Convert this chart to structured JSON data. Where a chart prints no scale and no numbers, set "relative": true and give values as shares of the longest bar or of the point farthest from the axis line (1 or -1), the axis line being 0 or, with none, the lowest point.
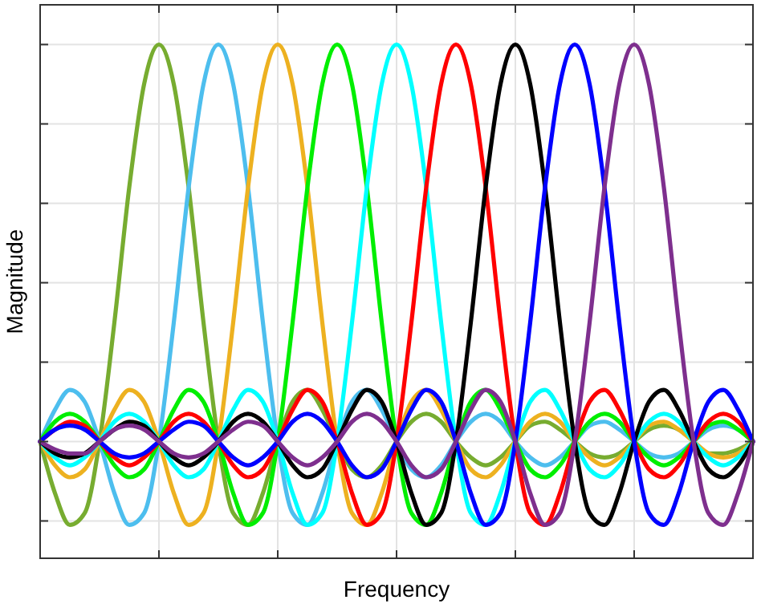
{
  "chart_data": {
    "type": "line",
    "xlabel": "Frequency",
    "ylabel": "Magnitude",
    "relative": true,
    "grid": true,
    "categories": [
      null,
      null,
      null,
      null,
      null,
      null,
      null,
      null,
      null,
      null,
      null,
      null,
      null,
      null,
      null,
      null,
      null,
      null,
      null,
      null,
      null,
      null,
      null,
      null,
      null,
      null,
      null,
      null,
      null,
      null,
      null,
      null,
      null,
      null,
      null,
      null,
      null,
      null,
      null,
      null,
      null,
      null,
      null,
      null,
      null,
      null,
      null,
      null,
      null
    ],
    "series": [
      {
        "color": "#77ac30",
        "values": [
          0,
          -0.13,
          -0.21,
          -0.18,
          0,
          0.3,
          0.64,
          0.9,
          1,
          0.9,
          0.64,
          0.3,
          0,
          -0.18,
          -0.21,
          -0.13,
          0,
          0.1,
          0.13,
          0.08,
          0,
          -0.07,
          -0.09,
          -0.06,
          0,
          0.05,
          0.07,
          0.05,
          0,
          -0.04,
          -0.06,
          -0.04,
          0,
          0.04,
          0.05,
          0.03,
          0,
          -0.03,
          -0.04,
          -0.03,
          0,
          0.03,
          0.04,
          0.03,
          0,
          -0.03,
          -0.03,
          -0.02,
          0
        ]
      },
      {
        "color": "#4dbeee",
        "values": [
          0,
          0.08,
          0.13,
          0.1,
          0,
          -0.13,
          -0.21,
          -0.18,
          0,
          0.3,
          0.64,
          0.9,
          1,
          0.9,
          0.64,
          0.3,
          0,
          -0.18,
          -0.21,
          -0.13,
          0,
          0.1,
          0.13,
          0.08,
          0,
          -0.07,
          -0.09,
          -0.06,
          0,
          0.05,
          0.07,
          0.05,
          0,
          -0.04,
          -0.06,
          -0.04,
          0,
          0.04,
          0.05,
          0.03,
          0,
          -0.03,
          -0.04,
          -0.03,
          0,
          0.03,
          0.04,
          0.03,
          0
        ]
      },
      {
        "color": "#edb120",
        "values": [
          0,
          -0.06,
          -0.09,
          -0.07,
          0,
          0.08,
          0.13,
          0.1,
          0,
          -0.13,
          -0.21,
          -0.18,
          0,
          0.3,
          0.64,
          0.9,
          1,
          0.9,
          0.64,
          0.3,
          0,
          -0.18,
          -0.21,
          -0.13,
          0,
          0.1,
          0.13,
          0.08,
          0,
          -0.07,
          -0.09,
          -0.06,
          0,
          0.05,
          0.07,
          0.05,
          0,
          -0.04,
          -0.06,
          -0.04,
          0,
          0.04,
          0.05,
          0.03,
          0,
          -0.03,
          -0.04,
          -0.03,
          0
        ]
      },
      {
        "color": "#00ee00",
        "values": [
          0,
          0.05,
          0.07,
          0.05,
          0,
          -0.06,
          -0.09,
          -0.07,
          0,
          0.08,
          0.13,
          0.1,
          0,
          -0.13,
          -0.21,
          -0.18,
          0,
          0.3,
          0.64,
          0.9,
          1,
          0.9,
          0.64,
          0.3,
          0,
          -0.18,
          -0.21,
          -0.13,
          0,
          0.1,
          0.13,
          0.08,
          0,
          -0.07,
          -0.09,
          -0.06,
          0,
          0.05,
          0.07,
          0.05,
          0,
          -0.04,
          -0.06,
          -0.04,
          0,
          0.04,
          0.05,
          0.03,
          0
        ]
      },
      {
        "color": "#00ffff",
        "values": [
          0,
          -0.04,
          -0.06,
          -0.04,
          0,
          0.05,
          0.07,
          0.05,
          0,
          -0.06,
          -0.09,
          -0.07,
          0,
          0.08,
          0.13,
          0.1,
          0,
          -0.13,
          -0.21,
          -0.18,
          0,
          0.3,
          0.64,
          0.9,
          1,
          0.9,
          0.64,
          0.3,
          0,
          -0.18,
          -0.21,
          -0.13,
          0,
          0.1,
          0.13,
          0.08,
          0,
          -0.07,
          -0.09,
          -0.06,
          0,
          0.05,
          0.07,
          0.05,
          0,
          -0.04,
          -0.06,
          -0.04,
          0
        ]
      },
      {
        "color": "#ff0000",
        "values": [
          0,
          0.03,
          0.05,
          0.04,
          0,
          -0.04,
          -0.06,
          -0.04,
          0,
          0.05,
          0.07,
          0.05,
          0,
          -0.06,
          -0.09,
          -0.07,
          0,
          0.08,
          0.13,
          0.1,
          0,
          -0.13,
          -0.21,
          -0.18,
          0,
          0.3,
          0.64,
          0.9,
          1,
          0.9,
          0.64,
          0.3,
          0,
          -0.18,
          -0.21,
          -0.13,
          0,
          0.1,
          0.13,
          0.08,
          0,
          -0.07,
          -0.09,
          -0.06,
          0,
          0.05,
          0.07,
          0.05,
          0
        ]
      },
      {
        "color": "#000000",
        "values": [
          0,
          -0.03,
          -0.04,
          -0.03,
          0,
          0.03,
          0.05,
          0.04,
          0,
          -0.04,
          -0.06,
          -0.04,
          0,
          0.05,
          0.07,
          0.05,
          0,
          -0.06,
          -0.09,
          -0.07,
          0,
          0.08,
          0.13,
          0.1,
          0,
          -0.13,
          -0.21,
          -0.18,
          0,
          0.3,
          0.64,
          0.9,
          1,
          0.9,
          0.64,
          0.3,
          0,
          -0.18,
          -0.21,
          -0.13,
          0,
          0.1,
          0.13,
          0.08,
          0,
          -0.07,
          -0.09,
          -0.06,
          0
        ]
      },
      {
        "color": "#0000ff",
        "values": [
          0,
          0.03,
          0.04,
          0.03,
          0,
          -0.03,
          -0.04,
          -0.03,
          0,
          0.03,
          0.05,
          0.04,
          0,
          -0.04,
          -0.06,
          -0.04,
          0,
          0.05,
          0.07,
          0.05,
          0,
          -0.06,
          -0.09,
          -0.07,
          0,
          0.08,
          0.13,
          0.1,
          0,
          -0.13,
          -0.21,
          -0.18,
          0,
          0.3,
          0.64,
          0.9,
          1,
          0.9,
          0.64,
          0.3,
          0,
          -0.18,
          -0.21,
          -0.13,
          0,
          0.1,
          0.13,
          0.08,
          0
        ]
      },
      {
        "color": "#7e2f8e",
        "values": [
          0,
          -0.02,
          -0.03,
          -0.03,
          0,
          0.03,
          0.04,
          0.03,
          0,
          -0.03,
          -0.04,
          -0.03,
          0,
          0.03,
          0.05,
          0.04,
          0,
          -0.04,
          -0.06,
          -0.04,
          0,
          0.05,
          0.07,
          0.05,
          0,
          -0.06,
          -0.09,
          -0.07,
          0,
          0.08,
          0.13,
          0.1,
          0,
          -0.13,
          -0.21,
          -0.18,
          0,
          0.3,
          0.64,
          0.9,
          1,
          0.9,
          0.64,
          0.3,
          0,
          -0.18,
          -0.21,
          -0.13,
          0
        ]
      }
    ]
  }
}
